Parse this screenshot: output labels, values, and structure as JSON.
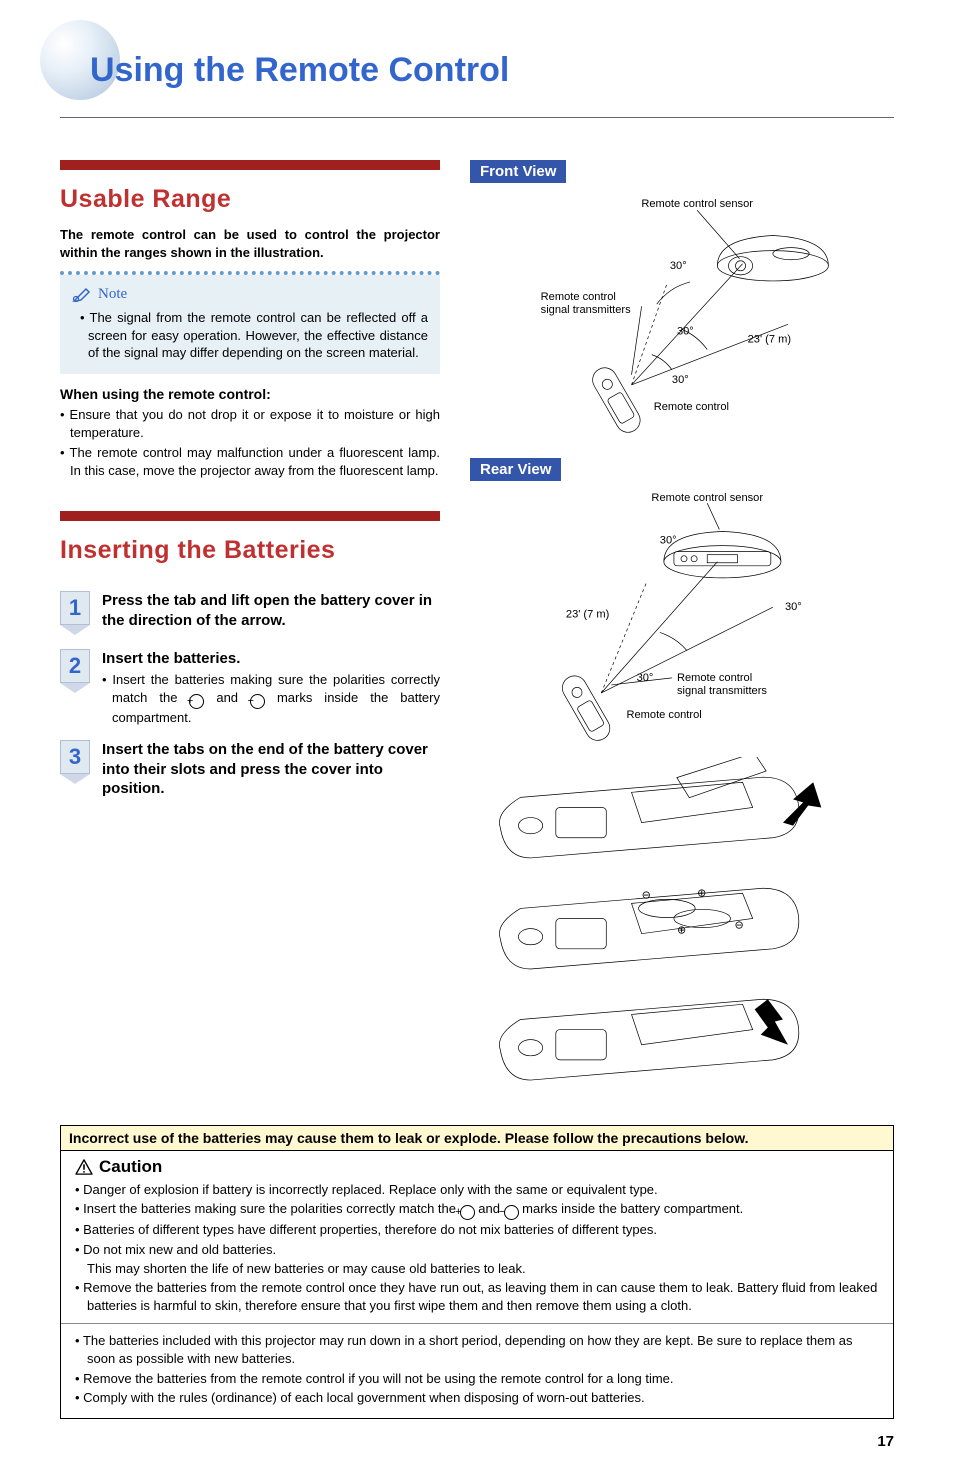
{
  "page_title": "Using the Remote Control",
  "sections": {
    "usable_range": {
      "heading": "Usable Range",
      "intro": "The remote control can be used to control the projector within the ranges shown in the illustration.",
      "note_label": "Note",
      "note_items": [
        "The signal from the remote control can be reflected off a screen for easy operation. However, the effective distance of the signal may differ depending on the screen material."
      ],
      "sub_heading": "When using the remote control:",
      "bullets": [
        "Ensure that you do not drop it or expose it to moisture or high temperature.",
        "The remote control may malfunction under a fluorescent lamp. In this case, move the projector away from the fluorescent lamp."
      ]
    },
    "inserting": {
      "heading": "Inserting the Batteries",
      "steps": [
        {
          "n": "1",
          "title": "Press the tab and lift open the battery cover in the direction of the arrow."
        },
        {
          "n": "2",
          "title": "Insert the batteries.",
          "sub_prefix": "Insert the batteries making sure the polarities correctly match the ",
          "sub_suffix": " marks inside the battery compartment."
        },
        {
          "n": "3",
          "title": "Insert the tabs on the end of the battery cover into their slots and press the cover into position."
        }
      ]
    }
  },
  "views": {
    "front": {
      "label": "Front View",
      "sensor": "Remote control sensor",
      "transmitters": "Remote control\nsignal transmitters",
      "remote": "Remote control",
      "angle": "30°",
      "distance": "23' (7 m)"
    },
    "rear": {
      "label": "Rear View",
      "sensor": "Remote control sensor",
      "transmitters": "Remote control\nsignal transmitters",
      "remote": "Remote control",
      "angle": "30°",
      "distance": "23' (7 m)"
    }
  },
  "caution": {
    "header": "Incorrect use of the batteries may cause them to leak or explode. Please follow the precautions below.",
    "title": "Caution",
    "group1": [
      "Danger of explosion if battery is incorrectly replaced. Replace only with the same or equivalent type.",
      "__polarity_line__",
      "Batteries of different types have different properties, therefore do not mix batteries of different types.",
      "Do not mix new and old batteries.",
      "__indent__This may shorten the life of new batteries or may cause old batteries to leak.",
      "Remove the batteries from the remote control once they have run out, as leaving them in can cause them to leak. Battery fluid from leaked batteries is harmful to skin, therefore ensure that you first wipe them and then remove them using a cloth."
    ],
    "polarity_prefix": "Insert the batteries making sure the polarities correctly match the ",
    "polarity_suffix": " marks inside the battery compartment.",
    "group2": [
      "The batteries included with this projector may run down in a short period, depending on how they are kept. Be sure to replace them as soon as possible with new batteries.",
      "Remove the batteries from the remote control if you will not be using the remote control for a long time.",
      "Comply with the rules (ordinance) of each local government when disposing of worn-out batteries."
    ]
  },
  "page_number": "17",
  "colors": {
    "title_blue": "#3366cc",
    "red_bar": "#a02020",
    "section_red": "#c03030",
    "note_bg": "#e6f0f5",
    "view_label_bg": "#3355aa",
    "caution_header_bg": "#fff8d0",
    "dotted": "#6699cc"
  }
}
